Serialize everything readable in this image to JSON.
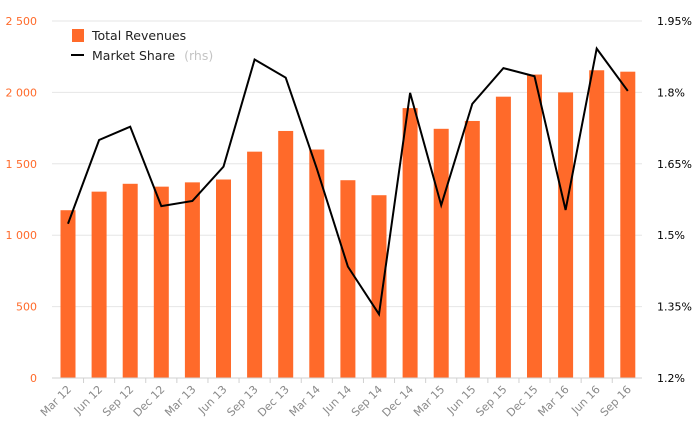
{
  "chart_data": {
    "type": "bar+line",
    "categories": [
      "Mar 12",
      "Jun 12",
      "Sep 12",
      "Dec 12",
      "Mar 13",
      "Jun 13",
      "Sep 13",
      "Dec 13",
      "Mar 14",
      "Jun 14",
      "Sep 14",
      "Dec 14",
      "Mar 15",
      "Jun 15",
      "Sep 15",
      "Dec 15",
      "Mar 16",
      "Jun 16",
      "Sep 16"
    ],
    "series": [
      {
        "name": "Total Revenues",
        "type": "bar",
        "axis": "left",
        "color": "#ff6a2a",
        "values": [
          1175,
          1305,
          1360,
          1340,
          1370,
          1390,
          1585,
          1730,
          1600,
          1385,
          1280,
          1890,
          1745,
          1800,
          1970,
          2125,
          2000,
          2155,
          2145
        ]
      },
      {
        "name": "Market Share",
        "name_suffix": "(rhs)",
        "type": "line",
        "axis": "right",
        "color": "#000000",
        "values": [
          1.524,
          1.7,
          1.728,
          1.561,
          1.572,
          1.644,
          1.869,
          1.831,
          1.64,
          1.434,
          1.334,
          1.799,
          1.563,
          1.776,
          1.851,
          1.834,
          1.553,
          1.892,
          1.803
        ]
      }
    ],
    "y_left": {
      "range": [
        0,
        2500
      ],
      "ticks": [
        0,
        500,
        1000,
        1500,
        2000,
        2500
      ],
      "tick_labels": [
        "0",
        "500",
        "1 000",
        "1 500",
        "2 000",
        "2 500"
      ],
      "tick_color": "#ff6a2a"
    },
    "y_right": {
      "range": [
        1.2,
        1.95
      ],
      "ticks": [
        1.2,
        1.35,
        1.5,
        1.65,
        1.8,
        1.95
      ],
      "tick_labels": [
        "1.2%",
        "1.35%",
        "1.5%",
        "1.65%",
        "1.8%",
        "1.95%"
      ],
      "tick_color": "#000000"
    },
    "grid": true,
    "legend_position": "top-left"
  }
}
